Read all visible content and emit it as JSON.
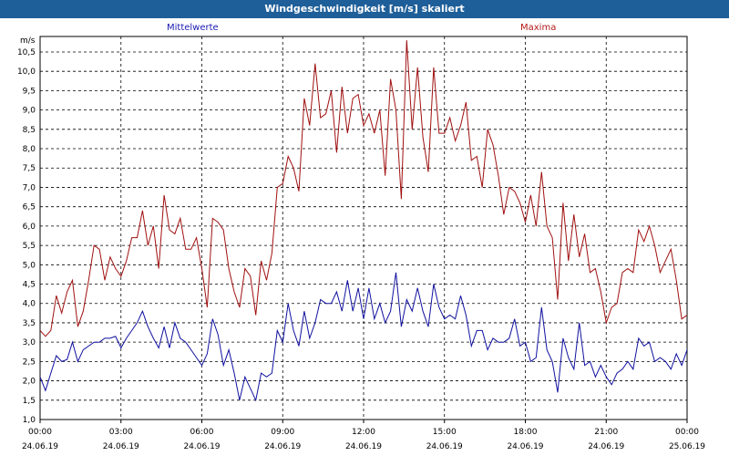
{
  "window": {
    "title": "Windgeschwindigkeit [m/s] skaliert"
  },
  "chart_data": {
    "type": "line",
    "ylabel": "m/s",
    "ylim": [
      1.0,
      10.9
    ],
    "yticks": [
      1.0,
      1.5,
      2.0,
      2.5,
      3.0,
      3.5,
      4.0,
      4.5,
      5.0,
      5.5,
      6.0,
      6.5,
      7.0,
      7.5,
      8.0,
      8.5,
      9.0,
      9.5,
      10.0,
      10.5
    ],
    "ytick_labels": [
      "1,0",
      "1,5",
      "2,0",
      "2,5",
      "3,0",
      "3,5",
      "4,0",
      "4,5",
      "5,0",
      "5,5",
      "6,0",
      "6,5",
      "7,0",
      "7,5",
      "8,0",
      "8,5",
      "9,0",
      "9,5",
      "10,0",
      "10,5"
    ],
    "xlim": [
      0,
      24
    ],
    "xticks": [
      {
        "h": 0,
        "time": "00:00",
        "date": "24.06.19"
      },
      {
        "h": 3,
        "time": "03:00",
        "date": "24.06.19"
      },
      {
        "h": 6,
        "time": "06:00",
        "date": "24.06.19"
      },
      {
        "h": 9,
        "time": "09:00",
        "date": "24.06.19"
      },
      {
        "h": 12,
        "time": "12:00",
        "date": "24.06.19"
      },
      {
        "h": 15,
        "time": "15:00",
        "date": "24.06.19"
      },
      {
        "h": 18,
        "time": "18:00",
        "date": "24.06.19"
      },
      {
        "h": 21,
        "time": "21:00",
        "date": "24.06.19"
      },
      {
        "h": 24,
        "time": "00:00",
        "date": "25.06.19"
      }
    ],
    "grid": true,
    "series": [
      {
        "name": "Maxima",
        "color": "#a01010",
        "points": [
          [
            0.0,
            3.3
          ],
          [
            0.2,
            3.15
          ],
          [
            0.4,
            3.3
          ],
          [
            0.6,
            4.2
          ],
          [
            0.8,
            3.75
          ],
          [
            1.0,
            4.3
          ],
          [
            1.2,
            4.6
          ],
          [
            1.4,
            3.4
          ],
          [
            1.6,
            3.8
          ],
          [
            1.8,
            4.6
          ],
          [
            2.0,
            5.5
          ],
          [
            2.2,
            5.4
          ],
          [
            2.4,
            4.6
          ],
          [
            2.6,
            5.2
          ],
          [
            2.8,
            4.9
          ],
          [
            3.0,
            4.7
          ],
          [
            3.2,
            5.1
          ],
          [
            3.4,
            5.7
          ],
          [
            3.6,
            5.7
          ],
          [
            3.8,
            6.4
          ],
          [
            4.0,
            5.5
          ],
          [
            4.2,
            6.0
          ],
          [
            4.4,
            4.9
          ],
          [
            4.6,
            6.8
          ],
          [
            4.8,
            5.9
          ],
          [
            5.0,
            5.8
          ],
          [
            5.2,
            6.2
          ],
          [
            5.4,
            5.4
          ],
          [
            5.6,
            5.4
          ],
          [
            5.8,
            5.7
          ],
          [
            6.0,
            4.9
          ],
          [
            6.2,
            3.9
          ],
          [
            6.4,
            6.2
          ],
          [
            6.6,
            6.1
          ],
          [
            6.8,
            5.9
          ],
          [
            7.0,
            4.9
          ],
          [
            7.2,
            4.3
          ],
          [
            7.4,
            3.9
          ],
          [
            7.6,
            4.9
          ],
          [
            7.8,
            4.7
          ],
          [
            8.0,
            3.7
          ],
          [
            8.2,
            5.1
          ],
          [
            8.4,
            4.6
          ],
          [
            8.6,
            5.3
          ],
          [
            8.8,
            7.0
          ],
          [
            9.0,
            7.1
          ],
          [
            9.2,
            7.8
          ],
          [
            9.4,
            7.5
          ],
          [
            9.6,
            6.9
          ],
          [
            9.8,
            9.3
          ],
          [
            10.0,
            8.6
          ],
          [
            10.2,
            10.2
          ],
          [
            10.4,
            8.8
          ],
          [
            10.6,
            8.9
          ],
          [
            10.8,
            9.5
          ],
          [
            11.0,
            7.9
          ],
          [
            11.2,
            9.6
          ],
          [
            11.4,
            8.4
          ],
          [
            11.6,
            9.3
          ],
          [
            11.8,
            9.4
          ],
          [
            12.0,
            8.6
          ],
          [
            12.2,
            8.9
          ],
          [
            12.4,
            8.4
          ],
          [
            12.6,
            9.0
          ],
          [
            12.8,
            7.3
          ],
          [
            13.0,
            9.8
          ],
          [
            13.2,
            9.0
          ],
          [
            13.4,
            6.7
          ],
          [
            13.6,
            10.8
          ],
          [
            13.8,
            8.5
          ],
          [
            14.0,
            10.1
          ],
          [
            14.2,
            8.3
          ],
          [
            14.4,
            7.4
          ],
          [
            14.6,
            10.1
          ],
          [
            14.8,
            8.4
          ],
          [
            15.0,
            8.4
          ],
          [
            15.2,
            8.8
          ],
          [
            15.4,
            8.2
          ],
          [
            15.6,
            8.6
          ],
          [
            15.8,
            9.2
          ],
          [
            16.0,
            7.7
          ],
          [
            16.2,
            7.8
          ],
          [
            16.4,
            7.0
          ],
          [
            16.6,
            8.5
          ],
          [
            16.8,
            8.1
          ],
          [
            17.0,
            7.3
          ],
          [
            17.2,
            6.3
          ],
          [
            17.4,
            7.0
          ],
          [
            17.6,
            6.9
          ],
          [
            17.8,
            6.6
          ],
          [
            18.0,
            6.1
          ],
          [
            18.2,
            6.8
          ],
          [
            18.4,
            6.0
          ],
          [
            18.6,
            7.4
          ],
          [
            18.8,
            6.0
          ],
          [
            19.0,
            5.7
          ],
          [
            19.2,
            4.1
          ],
          [
            19.4,
            6.6
          ],
          [
            19.6,
            5.1
          ],
          [
            19.8,
            6.3
          ],
          [
            20.0,
            5.2
          ],
          [
            20.2,
            5.8
          ],
          [
            20.4,
            4.8
          ],
          [
            20.6,
            4.9
          ],
          [
            20.8,
            4.3
          ],
          [
            21.0,
            3.5
          ],
          [
            21.2,
            3.9
          ],
          [
            21.4,
            4.0
          ],
          [
            21.6,
            4.8
          ],
          [
            21.8,
            4.9
          ],
          [
            22.0,
            4.8
          ],
          [
            22.2,
            5.9
          ],
          [
            22.4,
            5.6
          ],
          [
            22.6,
            6.0
          ],
          [
            22.8,
            5.5
          ],
          [
            23.0,
            4.8
          ],
          [
            23.2,
            5.1
          ],
          [
            23.4,
            5.4
          ],
          [
            23.6,
            4.6
          ],
          [
            23.8,
            3.6
          ],
          [
            24.0,
            3.7
          ],
          [
            24.2,
            4.0
          ]
        ]
      },
      {
        "name": "Mittelwerte",
        "color": "#1010a0",
        "points": [
          [
            0.0,
            2.1
          ],
          [
            0.2,
            1.75
          ],
          [
            0.4,
            2.2
          ],
          [
            0.6,
            2.65
          ],
          [
            0.8,
            2.5
          ],
          [
            1.0,
            2.55
          ],
          [
            1.2,
            3.0
          ],
          [
            1.4,
            2.5
          ],
          [
            1.6,
            2.8
          ],
          [
            1.8,
            2.9
          ],
          [
            2.0,
            3.0
          ],
          [
            2.2,
            3.0
          ],
          [
            2.4,
            3.1
          ],
          [
            2.6,
            3.1
          ],
          [
            2.8,
            3.15
          ],
          [
            3.0,
            2.85
          ],
          [
            3.2,
            3.1
          ],
          [
            3.4,
            3.3
          ],
          [
            3.6,
            3.5
          ],
          [
            3.8,
            3.8
          ],
          [
            4.0,
            3.4
          ],
          [
            4.2,
            3.1
          ],
          [
            4.4,
            2.85
          ],
          [
            4.6,
            3.4
          ],
          [
            4.8,
            2.85
          ],
          [
            5.0,
            3.5
          ],
          [
            5.2,
            3.1
          ],
          [
            5.4,
            3.0
          ],
          [
            5.6,
            2.8
          ],
          [
            5.8,
            2.6
          ],
          [
            6.0,
            2.4
          ],
          [
            6.2,
            2.7
          ],
          [
            6.4,
            3.6
          ],
          [
            6.6,
            3.2
          ],
          [
            6.8,
            2.4
          ],
          [
            7.0,
            2.8
          ],
          [
            7.2,
            2.2
          ],
          [
            7.4,
            1.5
          ],
          [
            7.6,
            2.1
          ],
          [
            7.8,
            1.8
          ],
          [
            8.0,
            1.5
          ],
          [
            8.2,
            2.2
          ],
          [
            8.4,
            2.1
          ],
          [
            8.6,
            2.2
          ],
          [
            8.8,
            3.3
          ],
          [
            9.0,
            3.0
          ],
          [
            9.2,
            4.0
          ],
          [
            9.4,
            3.3
          ],
          [
            9.6,
            2.9
          ],
          [
            9.8,
            3.8
          ],
          [
            10.0,
            3.1
          ],
          [
            10.2,
            3.5
          ],
          [
            10.4,
            4.1
          ],
          [
            10.6,
            4.0
          ],
          [
            10.8,
            4.0
          ],
          [
            11.0,
            4.3
          ],
          [
            11.2,
            3.8
          ],
          [
            11.4,
            4.6
          ],
          [
            11.6,
            3.8
          ],
          [
            11.8,
            4.4
          ],
          [
            12.0,
            3.6
          ],
          [
            12.2,
            4.4
          ],
          [
            12.4,
            3.6
          ],
          [
            12.6,
            4.0
          ],
          [
            12.8,
            3.5
          ],
          [
            13.0,
            3.8
          ],
          [
            13.2,
            4.8
          ],
          [
            13.4,
            3.4
          ],
          [
            13.6,
            4.1
          ],
          [
            13.8,
            3.8
          ],
          [
            14.0,
            4.4
          ],
          [
            14.2,
            3.8
          ],
          [
            14.4,
            3.4
          ],
          [
            14.6,
            4.5
          ],
          [
            14.8,
            3.9
          ],
          [
            15.0,
            3.6
          ],
          [
            15.2,
            3.7
          ],
          [
            15.4,
            3.6
          ],
          [
            15.6,
            4.2
          ],
          [
            15.8,
            3.7
          ],
          [
            16.0,
            2.9
          ],
          [
            16.2,
            3.3
          ],
          [
            16.4,
            3.3
          ],
          [
            16.6,
            2.8
          ],
          [
            16.8,
            3.1
          ],
          [
            17.0,
            3.0
          ],
          [
            17.2,
            3.0
          ],
          [
            17.4,
            3.1
          ],
          [
            17.6,
            3.6
          ],
          [
            17.8,
            2.9
          ],
          [
            18.0,
            3.0
          ],
          [
            18.2,
            2.5
          ],
          [
            18.4,
            2.6
          ],
          [
            18.6,
            3.9
          ],
          [
            18.8,
            2.8
          ],
          [
            19.0,
            2.5
          ],
          [
            19.2,
            1.7
          ],
          [
            19.4,
            3.1
          ],
          [
            19.6,
            2.6
          ],
          [
            19.8,
            2.3
          ],
          [
            20.0,
            3.5
          ],
          [
            20.2,
            2.4
          ],
          [
            20.4,
            2.5
          ],
          [
            20.6,
            2.1
          ],
          [
            20.8,
            2.4
          ],
          [
            21.0,
            2.1
          ],
          [
            21.2,
            1.9
          ],
          [
            21.4,
            2.2
          ],
          [
            21.6,
            2.3
          ],
          [
            21.8,
            2.5
          ],
          [
            22.0,
            2.3
          ],
          [
            22.2,
            3.1
          ],
          [
            22.4,
            2.9
          ],
          [
            22.6,
            3.0
          ],
          [
            22.8,
            2.5
          ],
          [
            23.0,
            2.6
          ],
          [
            23.2,
            2.5
          ],
          [
            23.4,
            2.3
          ],
          [
            23.6,
            2.7
          ],
          [
            23.8,
            2.4
          ],
          [
            24.0,
            2.8
          ],
          [
            24.2,
            2.6
          ]
        ]
      }
    ]
  }
}
